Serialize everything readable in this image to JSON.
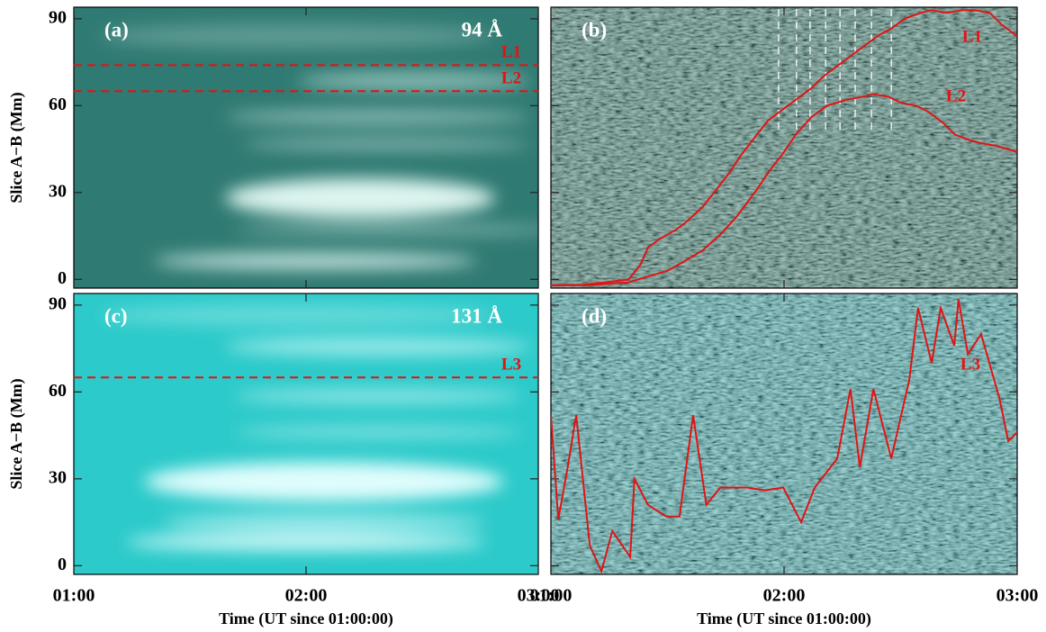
{
  "chart_data": [
    {
      "type": "image",
      "title": "(a)",
      "channel": "94 Å",
      "ylabel": "Slice A−B (Mm)",
      "image_color": "#2f7a72",
      "ylim": [
        -3,
        94
      ],
      "yticks": [
        0,
        30,
        60,
        90
      ],
      "hlines": [
        {
          "name": "L1",
          "value": 74,
          "color": "#e01414"
        },
        {
          "name": "L2",
          "value": 65,
          "color": "#e01414"
        }
      ]
    },
    {
      "type": "line",
      "title": "(b)",
      "image_color": "#2d7366",
      "markers_x": [
        58.6,
        63.2,
        66.7,
        70.7,
        74.4,
        78.3,
        82.5,
        87.6
      ],
      "series": [
        {
          "name": "L1",
          "color": "#e01414",
          "x": [
            0,
            7,
            14,
            20,
            23,
            25,
            28,
            32,
            35,
            39,
            42,
            46,
            49,
            53,
            56,
            60,
            63,
            67,
            70,
            74,
            77,
            81,
            84,
            88,
            91,
            95,
            98,
            102,
            106,
            109,
            113,
            116,
            120
          ],
          "values": [
            -2,
            -2,
            -1,
            0,
            5,
            11,
            14,
            17,
            20,
            25,
            30,
            37,
            43,
            50,
            55,
            59,
            62,
            66,
            70,
            74,
            77,
            81,
            84,
            87,
            90,
            92,
            93,
            92,
            93,
            93,
            92,
            88,
            84
          ]
        },
        {
          "name": "L2",
          "color": "#e01414",
          "x": [
            0,
            10,
            20,
            25,
            30,
            34,
            39,
            44,
            48,
            53,
            56,
            60,
            63,
            67,
            71,
            76,
            80,
            83,
            87,
            90,
            94,
            97,
            101,
            104,
            108,
            111,
            115,
            120
          ],
          "values": [
            -2,
            -2,
            -1,
            1,
            3,
            6,
            10,
            16,
            22,
            31,
            37,
            44,
            50,
            56,
            60,
            62,
            63,
            64,
            63,
            61,
            60,
            58,
            54,
            50,
            48,
            47,
            46,
            44
          ]
        }
      ]
    },
    {
      "type": "image",
      "title": "(c)",
      "channel": "131 Å",
      "ylabel": "Slice A−B (Mm)",
      "xlabel": "Time (UT since 01:00:00)",
      "image_color": "#2ccaca",
      "xlim": [
        0,
        120
      ],
      "xticks": [
        {
          "value": 0,
          "label": "01:00"
        },
        {
          "value": 60,
          "label": "02:00"
        },
        {
          "value": 120,
          "label": "03:00"
        }
      ],
      "ylim": [
        -3,
        94
      ],
      "yticks": [
        0,
        30,
        60,
        90
      ],
      "hlines": [
        {
          "name": "L3",
          "value": 65,
          "color": "#e01414"
        }
      ]
    },
    {
      "type": "line",
      "title": "(d)",
      "xlabel": "Time (UT since 01:00:00)",
      "image_color": "#2ea2a2",
      "xlim": [
        0,
        120
      ],
      "xticks": [
        {
          "value": 0,
          "label": "01:00"
        },
        {
          "value": 60,
          "label": "02:00"
        },
        {
          "value": 120,
          "label": "03:00"
        }
      ],
      "series": [
        {
          "name": "L3",
          "color": "#e01414",
          "x": [
            0,
            1.9,
            4.2,
            6.5,
            10,
            13,
            15.8,
            20.4,
            21.5,
            25,
            29.7,
            33.1,
            36.6,
            40,
            43.6,
            50.5,
            55.1,
            59.8,
            64.4,
            67.9,
            73.7,
            77.1,
            79.5,
            83,
            87.6,
            92.2,
            94.5,
            98,
            100.3,
            103.8,
            104.9,
            107.3,
            110.7,
            115.4,
            117.7,
            120
          ],
          "values": [
            52,
            16,
            33,
            52,
            7,
            -2,
            12,
            3,
            30,
            21,
            17,
            17,
            52,
            21,
            27,
            27,
            26,
            27,
            15,
            27,
            37,
            61,
            34,
            61,
            37,
            64,
            89,
            70,
            89,
            76,
            92,
            73,
            80,
            58,
            43,
            46
          ]
        }
      ]
    }
  ]
}
